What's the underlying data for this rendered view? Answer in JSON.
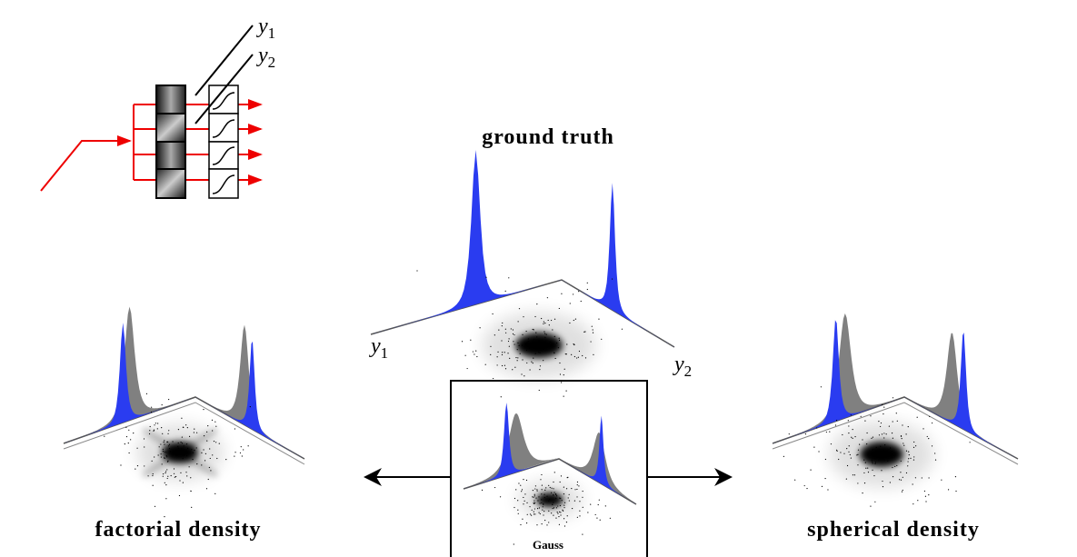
{
  "network": {
    "outputs": [
      {
        "var": "y",
        "sub": "1"
      },
      {
        "var": "y",
        "sub": "2"
      }
    ]
  },
  "ground_truth": {
    "title": "ground truth",
    "axes": [
      {
        "var": "y",
        "sub": "1"
      },
      {
        "var": "y",
        "sub": "2"
      }
    ]
  },
  "gauss": {
    "title": "Gauss"
  },
  "factorial": {
    "title": "factorial density"
  },
  "spherical": {
    "title": "spherical density"
  }
}
